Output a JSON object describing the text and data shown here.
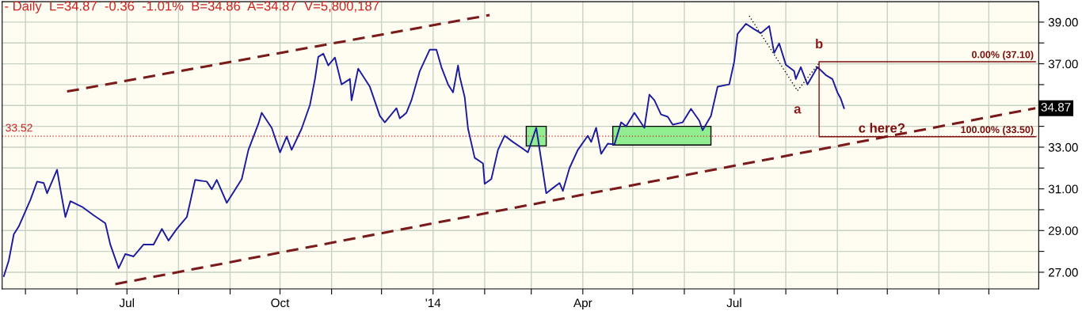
{
  "chart_data": {
    "type": "line",
    "title": "- Daily  L=34.87  -0.36  -1.01%  B=34.86  A=34.87  V=5,800,187",
    "xlim": [
      "2013-04-17",
      "2014-12-31"
    ],
    "xticks": [
      {
        "value": "2013-05-01",
        "label": null
      },
      {
        "value": "2013-06-01",
        "label": null
      },
      {
        "value": "2013-07-01",
        "label": "Jul"
      },
      {
        "value": "2013-08-01",
        "label": null
      },
      {
        "value": "2013-09-01",
        "label": null
      },
      {
        "value": "2013-10-01",
        "label": "Oct"
      },
      {
        "value": "2013-11-01",
        "label": null
      },
      {
        "value": "2013-12-01",
        "label": null
      },
      {
        "value": "2014-01-01",
        "label": "'14"
      },
      {
        "value": "2014-02-01",
        "label": null
      },
      {
        "value": "2014-03-01",
        "label": null
      },
      {
        "value": "2014-04-01",
        "label": "Apr"
      },
      {
        "value": "2014-05-01",
        "label": null
      },
      {
        "value": "2014-06-01",
        "label": null
      },
      {
        "value": "2014-07-01",
        "label": "Jul"
      },
      {
        "value": "2014-08-01",
        "label": null
      },
      {
        "value": "2014-09-01",
        "label": null
      },
      {
        "value": "2014-10-01",
        "label": null
      },
      {
        "value": "2014-11-01",
        "label": null
      },
      {
        "value": "2014-12-01",
        "label": null
      }
    ],
    "ylim": [
      26.2,
      39.98
    ],
    "yticks": [
      {
        "value": 27,
        "label": "27.00"
      },
      {
        "value": 28,
        "label": null
      },
      {
        "value": 29,
        "label": "29.00"
      },
      {
        "value": 30,
        "label": null
      },
      {
        "value": 31,
        "label": "31.00"
      },
      {
        "value": 32,
        "label": null
      },
      {
        "value": 33,
        "label": "33.00"
      },
      {
        "value": 34,
        "label": null
      },
      {
        "value": 35,
        "label": null
      },
      {
        "value": 36,
        "label": null
      },
      {
        "value": 37,
        "label": "37.00"
      },
      {
        "value": 38,
        "label": null
      },
      {
        "value": 39,
        "label": "39.00"
      }
    ],
    "grid": true,
    "legend": false,
    "marker": "none",
    "line_style": "solid",
    "series": [
      {
        "color": "#1c1c9c",
        "x": [
          "2013-04-18",
          "2013-04-21",
          "2013-04-24",
          "2013-04-27",
          "2013-05-04",
          "2013-05-08",
          "2013-05-12",
          "2013-05-14",
          "2013-05-20",
          "2013-05-22",
          "2013-05-25",
          "2013-05-28",
          "2013-06-04",
          "2013-06-11",
          "2013-06-18",
          "2013-06-21",
          "2013-06-26",
          "2013-06-30",
          "2013-07-05",
          "2013-07-11",
          "2013-07-17",
          "2013-07-22",
          "2013-07-26",
          "2013-07-31",
          "2013-08-06",
          "2013-08-11",
          "2013-08-18",
          "2013-08-21",
          "2013-08-24",
          "2013-08-30",
          "2013-09-08",
          "2013-09-12",
          "2013-09-18",
          "2013-09-20",
          "2013-09-26",
          "2013-10-01",
          "2013-10-05",
          "2013-10-08",
          "2013-10-14",
          "2013-10-19",
          "2013-10-22",
          "2013-10-24",
          "2013-10-27",
          "2013-10-30",
          "2013-11-03",
          "2013-11-07",
          "2013-11-12",
          "2013-11-13",
          "2013-11-17",
          "2013-11-24",
          "2013-11-30",
          "2013-12-03",
          "2013-12-10",
          "2013-12-12",
          "2013-12-16",
          "2013-12-19",
          "2013-12-24",
          "2013-12-30",
          "2014-01-03",
          "2014-01-06",
          "2014-01-10",
          "2014-01-13",
          "2014-01-16",
          "2014-01-17",
          "2014-01-20",
          "2014-01-22",
          "2014-01-26",
          "2014-01-31",
          "2014-02-01",
          "2014-02-05",
          "2014-02-09",
          "2014-02-13",
          "2014-02-18",
          "2014-02-23",
          "2014-02-27",
          "2014-03-04",
          "2014-03-07",
          "2014-03-10",
          "2014-03-13",
          "2014-03-18",
          "2014-03-20",
          "2014-03-24",
          "2014-03-29",
          "2014-04-04",
          "2014-04-06",
          "2014-04-09",
          "2014-04-12",
          "2014-04-16",
          "2014-04-20",
          "2014-04-24",
          "2014-04-27",
          "2014-05-02",
          "2014-05-08",
          "2014-05-11",
          "2014-05-14",
          "2014-05-18",
          "2014-05-22",
          "2014-05-25",
          "2014-05-31",
          "2014-06-05",
          "2014-06-10",
          "2014-06-12",
          "2014-06-17",
          "2014-06-21",
          "2014-06-28",
          "2014-07-01",
          "2014-07-03",
          "2014-07-08",
          "2014-07-13",
          "2014-07-17",
          "2014-07-22",
          "2014-07-25",
          "2014-07-28",
          "2014-08-01",
          "2014-08-06",
          "2014-08-07",
          "2014-08-10",
          "2014-08-14",
          "2014-08-20",
          "2014-08-25",
          "2014-08-29",
          "2014-09-01",
          "2014-09-03",
          "2014-09-05"
        ],
        "values": [
          26.81,
          27.57,
          28.82,
          29.2,
          30.48,
          31.35,
          31.28,
          30.79,
          31.92,
          30.98,
          29.65,
          30.41,
          30.14,
          29.73,
          29.35,
          28.33,
          27.19,
          27.87,
          27.76,
          28.33,
          28.33,
          29.08,
          28.52,
          29.08,
          29.65,
          31.43,
          31.35,
          30.98,
          31.43,
          30.33,
          31.47,
          32.87,
          34.12,
          34.65,
          33.93,
          32.75,
          33.51,
          32.87,
          33.89,
          35.03,
          36.27,
          37.33,
          37.49,
          36.92,
          37.3,
          36.01,
          36.27,
          35.25,
          36.77,
          35.9,
          34.5,
          34.19,
          34.87,
          34.38,
          34.65,
          35.25,
          36.65,
          37.68,
          37.68,
          36.84,
          36.01,
          35.63,
          36.92,
          36.39,
          35.4,
          33.89,
          32.49,
          32.22,
          31.24,
          31.47,
          32.87,
          33.55,
          33.25,
          32.98,
          32.75,
          33.93,
          32.38,
          30.79,
          30.98,
          31.28,
          30.9,
          32.0,
          32.87,
          33.55,
          33.25,
          33.93,
          32.68,
          33.17,
          33.13,
          34.19,
          34.0,
          34.65,
          33.93,
          35.52,
          35.25,
          34.57,
          34.46,
          34.08,
          34.19,
          34.84,
          34.27,
          33.81,
          34.5,
          35.9,
          36.01,
          37.11,
          38.43,
          38.92,
          38.66,
          38.47,
          38.81,
          37.52,
          37.98,
          36.96,
          36.65,
          36.27,
          36.84,
          36.01,
          36.84,
          36.46,
          36.27,
          35.63,
          35.33,
          34.87
        ]
      },
      {
        "type": "line",
        "color": "#7a1a1a",
        "line_style": "dashed",
        "x": [
          "2013-05-26",
          "2014-02-04"
        ],
        "values": [
          35.67,
          39.34
        ]
      },
      {
        "type": "line",
        "color": "#7a1a1a",
        "line_style": "dashed",
        "x": [
          "2013-06-24",
          "2014-12-29"
        ],
        "values": [
          26.43,
          34.87
        ]
      },
      {
        "type": "line",
        "color": "#000000",
        "line_style": "dotted",
        "x": [
          "2014-07-10",
          "2014-08-08",
          "2014-08-21"
        ],
        "values": [
          39.3,
          35.71,
          37.03
        ]
      },
      {
        "type": "line",
        "color": "#7a1010",
        "line_style": "solid",
        "x": [
          "2014-12-29",
          "2014-08-21",
          "2014-08-21",
          "2014-12-29"
        ],
        "values": [
          37.1,
          37.1,
          33.5,
          33.5
        ]
      },
      {
        "type": "area",
        "color": "#90ee90",
        "x": [
          "2014-02-26",
          "2014-03-10",
          "2014-03-10",
          "2014-02-26",
          "2014-02-26"
        ],
        "values": [
          34.0,
          34.0,
          33.06,
          33.06,
          34.0
        ]
      },
      {
        "type": "area",
        "color": "#90ee90",
        "x": [
          "2014-04-19",
          "2014-06-17",
          "2014-06-17",
          "2014-04-19",
          "2014-04-19"
        ],
        "values": [
          34.0,
          34.0,
          33.1,
          33.1,
          34.0
        ]
      }
    ],
    "ref_lines": [
      {
        "axis": "y",
        "value": 33.52,
        "label": "33.52",
        "color": "#cc2222",
        "line_style": "dotted"
      }
    ],
    "annotations": [
      {
        "text": "a",
        "x": "2014-08-08",
        "y": 35.71
      },
      {
        "text": "b",
        "x": "2014-08-21",
        "y": 37.03
      },
      "c here?",
      {
        "text": "0.00% (37.10)",
        "x": "2014-12-29",
        "y": 37.1
      },
      {
        "text": "100.00% (33.50)",
        "x": "2014-12-29",
        "y": 33.5
      },
      {
        "text": "34.87",
        "y": 34.87
      }
    ]
  }
}
